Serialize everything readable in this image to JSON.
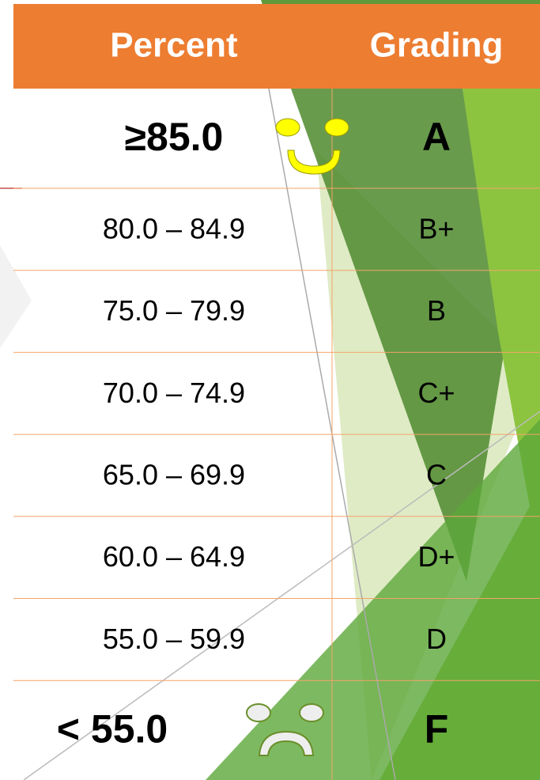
{
  "header": {
    "columns": [
      "Percent",
      "Grading"
    ]
  },
  "table": {
    "rows": [
      [
        "≥85.0",
        "A"
      ],
      [
        "80.0 – 84.9",
        "B+"
      ],
      [
        "75.0 – 79.9",
        "B"
      ],
      [
        "70.0 – 74.9",
        "C+"
      ],
      [
        "65.0 – 69.9",
        "C"
      ],
      [
        "60.0 – 64.9",
        "D+"
      ],
      [
        "55.0 – 59.9",
        "D"
      ],
      [
        "< 55.0",
        "F"
      ]
    ]
  }
}
